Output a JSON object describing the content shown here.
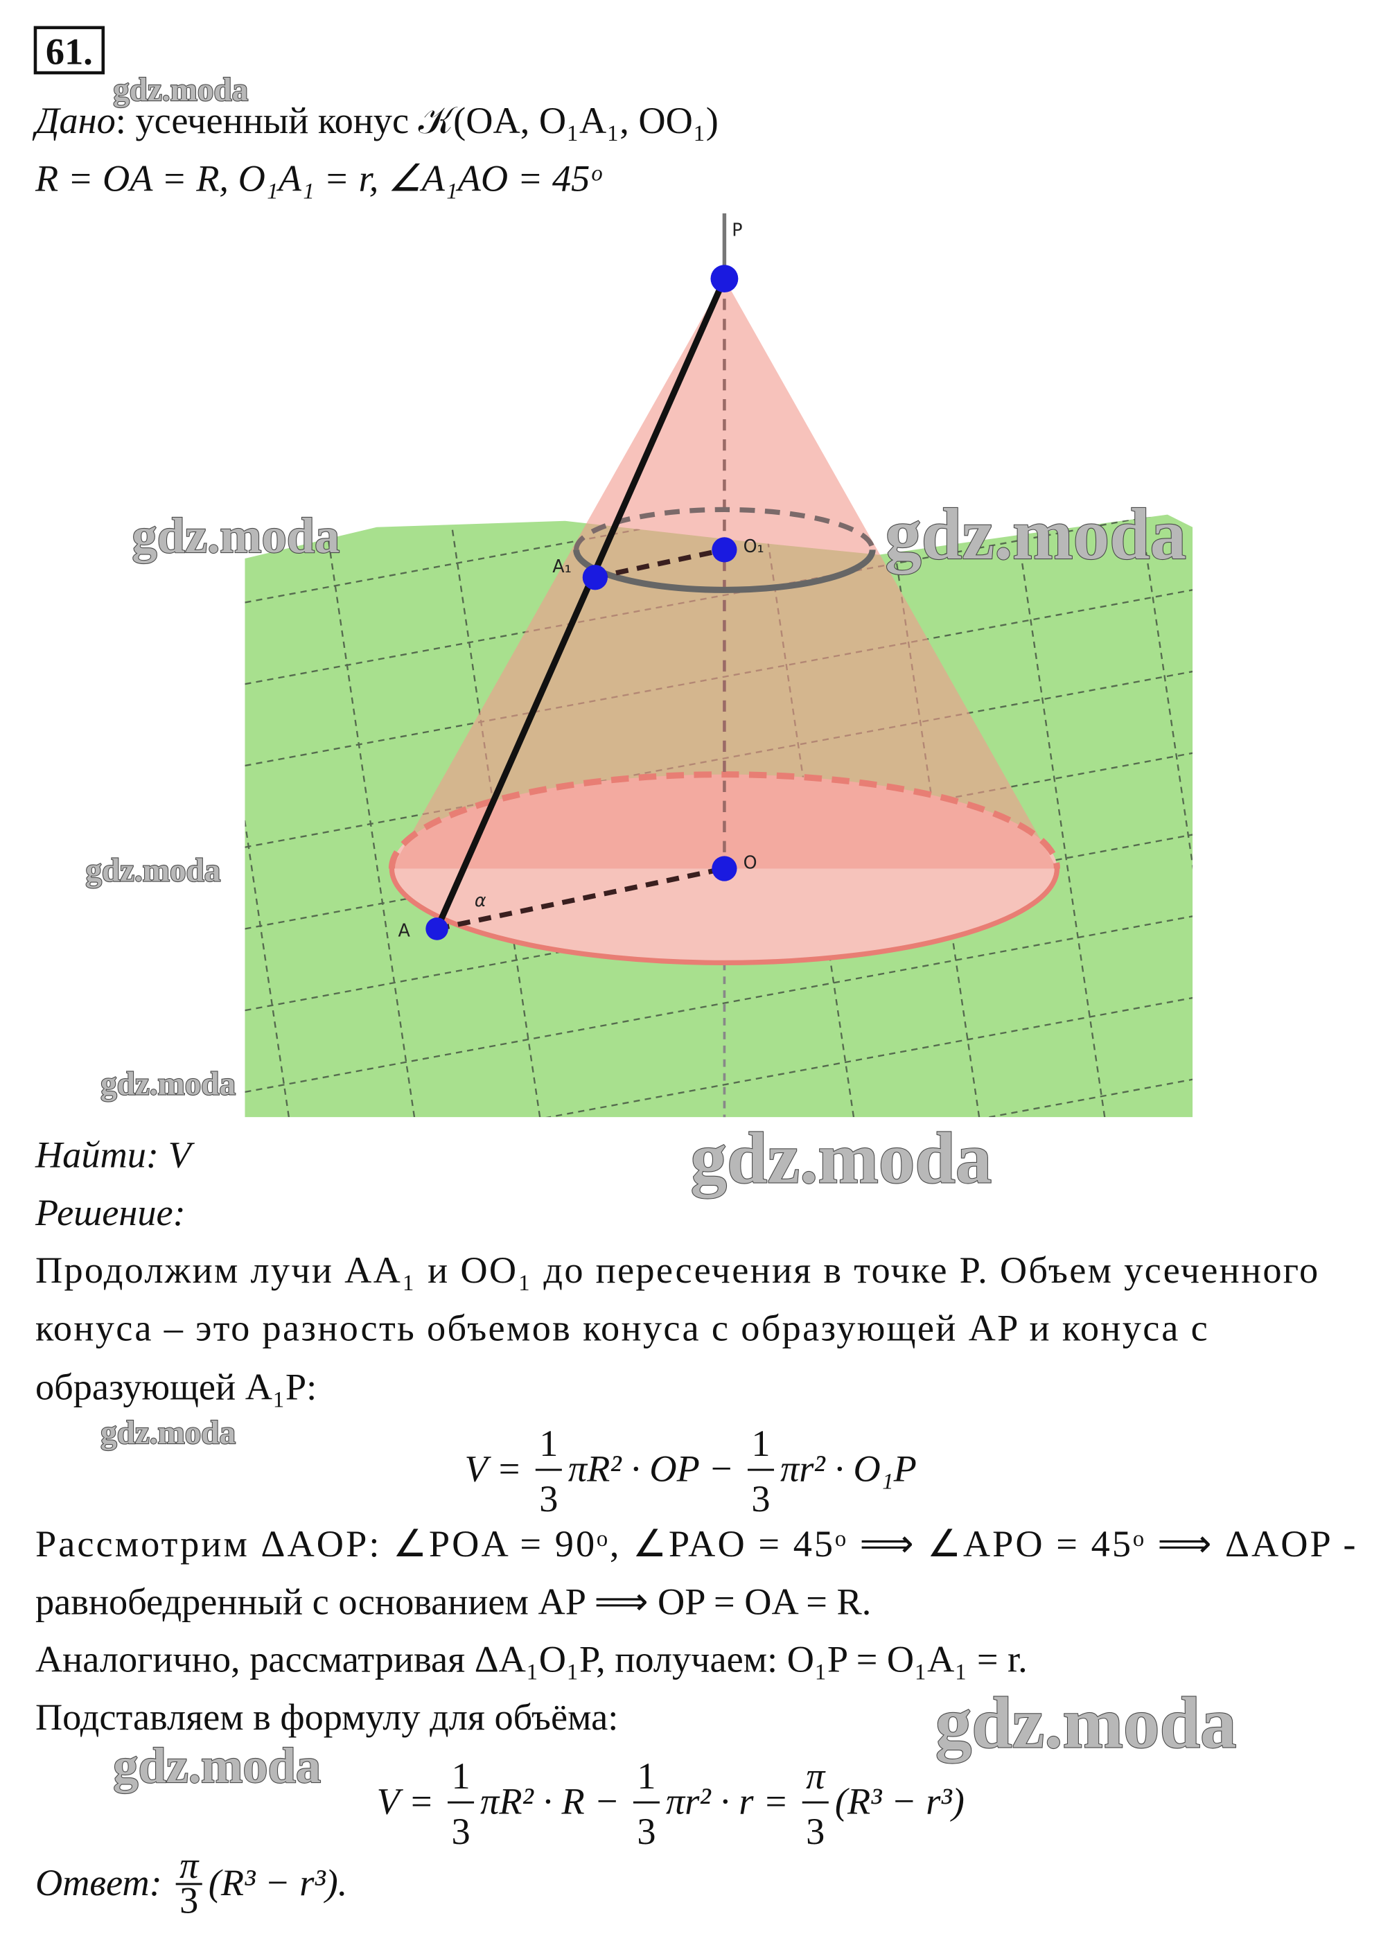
{
  "problem_number": "61.",
  "given": {
    "label": "Дано",
    "text": ": усеченный конус 𝒦(OA, O₁A₁, OO₁)",
    "conditions": "R = OA = R,  O₁A₁ = r,  ∠A₁AO = 45ᵒ"
  },
  "diagram": {
    "labels": [
      "P",
      "O₁",
      "A₁",
      "O",
      "A",
      "α"
    ]
  },
  "find": "Найти: V",
  "solution_label": "Решение:",
  "lines": [
    "Продолжим лучи AA₁ и OO₁ до пересечения в точке P. Объем усеченного",
    "конуса – это разность объемов конуса с образующей AP и конуса с",
    "образующей A₁P:",
    "Рассмотрим ΔAOP: ∠POA = 90ᵒ,  ∠PAO = 45ᵒ ⟹ ∠APO = 45ᵒ ⟹ ΔAOP -",
    "равнобедренный с основанием AP ⟹ OP = OA = R.",
    "Аналогично, рассматривая ΔA₁O₁P, получаем: O₁P = O₁A₁ = r.",
    "Подставляем в формулу для объёма:"
  ],
  "formula1": {
    "lhs": "V =",
    "f1": {
      "num": "1",
      "den": "3"
    },
    "t1": "πR² · OP −",
    "f2": {
      "num": "1",
      "den": "3"
    },
    "t2": "πr² · O₁P"
  },
  "formula2": {
    "lhs": "V =",
    "f1": {
      "num": "1",
      "den": "3"
    },
    "t1": "πR² · R −",
    "f2": {
      "num": "1",
      "den": "3"
    },
    "t2": "πr² · r =",
    "f3": {
      "num": "π",
      "den": "3"
    },
    "t3": "(R³ − r³)"
  },
  "answer": {
    "label": "Ответ:",
    "f": {
      "num": "π",
      "den": "3"
    },
    "text": "(R³ − r³)."
  },
  "watermarks": [
    "gdz.moda",
    "gdz.moda",
    "gdz.moda",
    "gdz.moda",
    "gdz.moda",
    "gdz.moda",
    "gdz.moda",
    "gdz.moda",
    "gdz.moda"
  ]
}
